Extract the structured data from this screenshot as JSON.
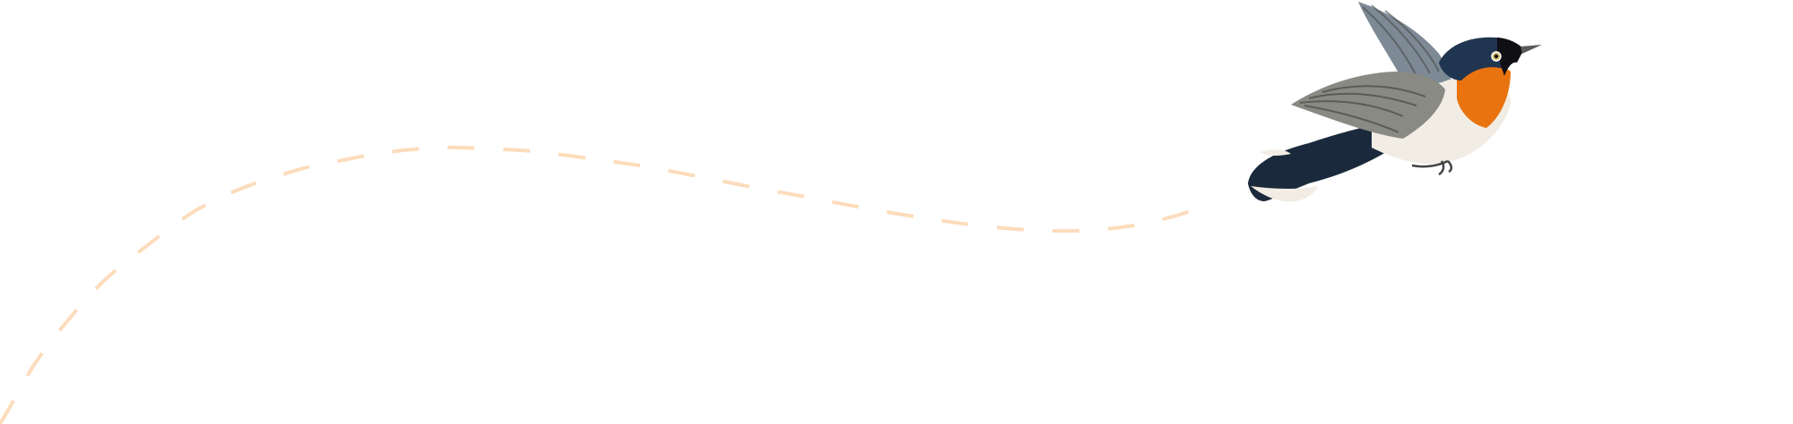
{
  "illustration": {
    "subject": "bird-icon",
    "path_style": "dashed",
    "colors": {
      "background": "#ffffff",
      "path": "#fcdcbc",
      "throat": "#e8730f",
      "head": "#1f3550",
      "belly": "#f1ede4",
      "wing": "#8a8a84",
      "tail": "#1a2a3c"
    }
  }
}
